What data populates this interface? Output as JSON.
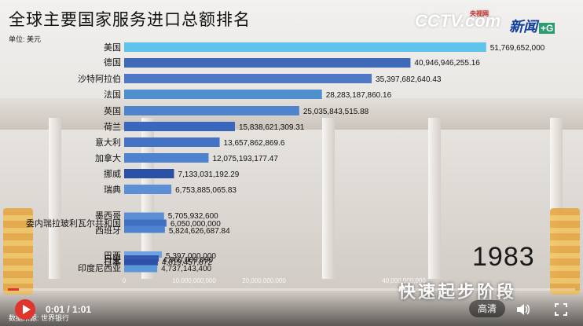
{
  "header": {
    "title": "全球主要国家服务进口总额排名",
    "unit": "单位: 美元"
  },
  "logos": {
    "cctv": "CCTV.com",
    "cctv_sub": "央视网",
    "news": "新闻",
    "news_plus": "+G"
  },
  "overlay": {
    "year": "1983",
    "caption": "快速起步阶段",
    "source": "数据来源: 世界银行"
  },
  "player": {
    "time": "0:01 / 1:01",
    "quality": "高清",
    "progress": 0.02,
    "accent": "#e0352e",
    "icons": [
      "play-icon",
      "volume-icon",
      "fullscreen-icon"
    ]
  },
  "chart_data": {
    "type": "bar",
    "orientation": "horizontal",
    "title": "全球主要国家服务进口总额排名",
    "ylabel": "单位: 美元",
    "xlim": [
      0,
      60000000000
    ],
    "xticks": [
      0,
      10000000000,
      20000000000,
      40000000000
    ],
    "xtick_labels": [
      "0",
      "10,000,000,000",
      "20,000,000,000",
      "40,000,000,000"
    ],
    "categories": [
      "美国",
      "德国",
      "沙特阿拉伯",
      "法国",
      "英国",
      "荷兰",
      "意大利",
      "加拿大",
      "挪威",
      "瑞典",
      "墨西哥",
      "委内瑞拉玻利瓦尔共和国",
      "西班牙",
      "巴西",
      "丹麦",
      "日本",
      "印度尼西亚"
    ],
    "values": [
      51769652000,
      40946946255.16,
      35397682640.43,
      28283187860.16,
      25035843515.88,
      15838621309.31,
      13657862869.6,
      12075193177.47,
      7133031192.29,
      6753885065.83,
      5705932600,
      6050000000,
      5824626687.84,
      5397000000,
      4960000000,
      4819457872,
      4737143400
    ],
    "value_labels": [
      "51,769,652,000",
      "40,946,946,255.16",
      "35,397,682,640.43",
      "28,283,187,860.16",
      "25,035,843,515.88",
      "15,838,621,309.31",
      "13,657,862,869.6",
      "12,075,193,177.47",
      "7,133,031,192.29",
      "6,753,885,065.83",
      "5,705,932,600",
      "6,050,000,000",
      "5,824,626,687.84",
      "5,397,000,000",
      "4,960,000,000",
      "4,819,457,872",
      "4,737,143,400"
    ],
    "colors": [
      "#5ec4ec",
      "#3e6ab8",
      "#4f78c7",
      "#4e8fce",
      "#4f83cc",
      "#3b66bd",
      "#4473c6",
      "#4d82cf",
      "#2c4fa6",
      "#5d8fd6",
      "#5b8fd4",
      "#3f70c2",
      "#4f82cf",
      "#6ea3df",
      "#3558b0",
      "#2f50a8",
      "#5b98d8"
    ],
    "grid": false
  }
}
